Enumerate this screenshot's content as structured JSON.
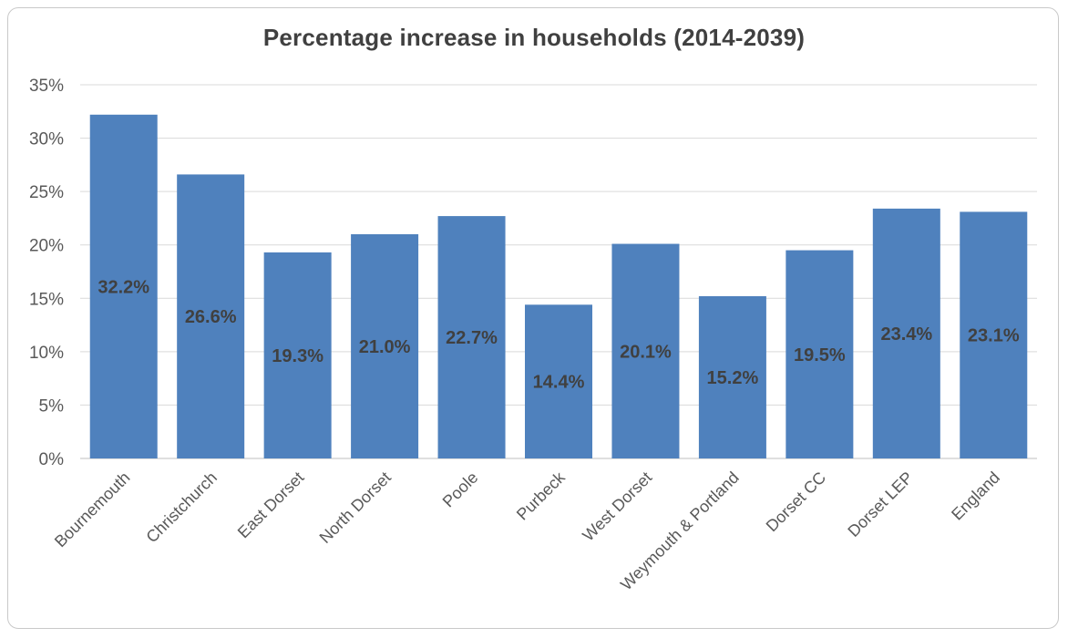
{
  "chart_data": {
    "type": "bar",
    "title": "Percentage increase in households (2014-2039)",
    "xlabel": "",
    "ylabel": "",
    "ylim": [
      0,
      35
    ],
    "ytick_step": 5,
    "ytick_labels": [
      "0%",
      "5%",
      "10%",
      "15%",
      "20%",
      "25%",
      "30%",
      "35%"
    ],
    "grid": true,
    "legend": "none",
    "bar_color": "#4f81bd",
    "categories": [
      "Bournemouth",
      "Christchurch",
      "East Dorset",
      "North Dorset",
      "Poole",
      "Purbeck",
      "West Dorset",
      "Weymouth & Portland",
      "Dorset CC",
      "Dorset LEP",
      "England"
    ],
    "values": [
      32.2,
      26.6,
      19.3,
      21.0,
      22.7,
      14.4,
      20.1,
      15.2,
      19.5,
      23.4,
      23.1
    ],
    "data_labels": [
      "32.2%",
      "26.6%",
      "19.3%",
      "21.0%",
      "22.7%",
      "14.4%",
      "20.1%",
      "15.2%",
      "19.5%",
      "23.4%",
      "23.1%"
    ]
  }
}
